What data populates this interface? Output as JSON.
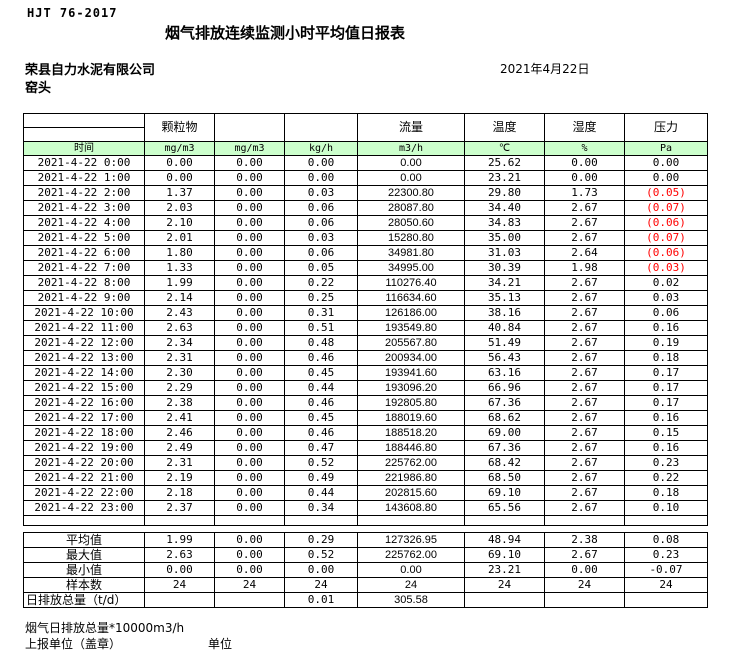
{
  "header": {
    "doc_code": "HJT 76-2017",
    "title": "烟气排放连续监测小时平均值日报表",
    "company": "荣县自力水泥有限公司",
    "station": "窑头",
    "date": "2021年4月22日"
  },
  "table": {
    "time_header": "时间",
    "group_headers": [
      "颗粒物",
      "",
      "",
      "流量",
      "温度",
      "湿度",
      "压力"
    ],
    "units": [
      "mg/m3",
      "mg/m3",
      "kg/h",
      "m3/h",
      "℃",
      "%",
      "Pa"
    ],
    "hourly_rows": [
      {
        "time": "2021-4-22 0:00",
        "values": [
          "0.00",
          "0.00",
          "0.00",
          "0.00",
          "25.62",
          "0.00",
          "0.00"
        ]
      },
      {
        "time": "2021-4-22 1:00",
        "values": [
          "0.00",
          "0.00",
          "0.00",
          "0.00",
          "23.21",
          "0.00",
          "0.00"
        ]
      },
      {
        "time": "2021-4-22 2:00",
        "values": [
          "1.37",
          "0.00",
          "0.03",
          "22300.80",
          "29.80",
          "1.73",
          "(0.05)"
        ]
      },
      {
        "time": "2021-4-22 3:00",
        "values": [
          "2.03",
          "0.00",
          "0.06",
          "28087.80",
          "34.40",
          "2.67",
          "(0.07)"
        ]
      },
      {
        "time": "2021-4-22 4:00",
        "values": [
          "2.10",
          "0.00",
          "0.06",
          "28050.60",
          "34.83",
          "2.67",
          "(0.06)"
        ]
      },
      {
        "time": "2021-4-22 5:00",
        "values": [
          "2.01",
          "0.00",
          "0.03",
          "15280.80",
          "35.00",
          "2.67",
          "(0.07)"
        ]
      },
      {
        "time": "2021-4-22 6:00",
        "values": [
          "1.80",
          "0.00",
          "0.06",
          "34981.80",
          "31.03",
          "2.64",
          "(0.06)"
        ]
      },
      {
        "time": "2021-4-22 7:00",
        "values": [
          "1.33",
          "0.00",
          "0.05",
          "34995.00",
          "30.39",
          "1.98",
          "(0.03)"
        ]
      },
      {
        "time": "2021-4-22 8:00",
        "values": [
          "1.99",
          "0.00",
          "0.22",
          "110276.40",
          "34.21",
          "2.67",
          "0.02"
        ]
      },
      {
        "time": "2021-4-22 9:00",
        "values": [
          "2.14",
          "0.00",
          "0.25",
          "116634.60",
          "35.13",
          "2.67",
          "0.03"
        ]
      },
      {
        "time": "2021-4-22 10:00",
        "values": [
          "2.43",
          "0.00",
          "0.31",
          "126186.00",
          "38.16",
          "2.67",
          "0.06"
        ]
      },
      {
        "time": "2021-4-22 11:00",
        "values": [
          "2.63",
          "0.00",
          "0.51",
          "193549.80",
          "40.84",
          "2.67",
          "0.16"
        ]
      },
      {
        "time": "2021-4-22 12:00",
        "values": [
          "2.34",
          "0.00",
          "0.48",
          "205567.80",
          "51.49",
          "2.67",
          "0.19"
        ]
      },
      {
        "time": "2021-4-22 13:00",
        "values": [
          "2.31",
          "0.00",
          "0.46",
          "200934.00",
          "56.43",
          "2.67",
          "0.18"
        ]
      },
      {
        "time": "2021-4-22 14:00",
        "values": [
          "2.30",
          "0.00",
          "0.45",
          "193941.60",
          "63.16",
          "2.67",
          "0.17"
        ]
      },
      {
        "time": "2021-4-22 15:00",
        "values": [
          "2.29",
          "0.00",
          "0.44",
          "193096.20",
          "66.96",
          "2.67",
          "0.17"
        ]
      },
      {
        "time": "2021-4-22 16:00",
        "values": [
          "2.38",
          "0.00",
          "0.46",
          "192805.80",
          "67.36",
          "2.67",
          "0.17"
        ]
      },
      {
        "time": "2021-4-22 17:00",
        "values": [
          "2.41",
          "0.00",
          "0.45",
          "188019.60",
          "68.62",
          "2.67",
          "0.16"
        ]
      },
      {
        "time": "2021-4-22 18:00",
        "values": [
          "2.46",
          "0.00",
          "0.46",
          "188518.20",
          "69.00",
          "2.67",
          "0.15"
        ]
      },
      {
        "time": "2021-4-22 19:00",
        "values": [
          "2.49",
          "0.00",
          "0.47",
          "188446.80",
          "67.36",
          "2.67",
          "0.16"
        ]
      },
      {
        "time": "2021-4-22 20:00",
        "values": [
          "2.31",
          "0.00",
          "0.52",
          "225762.00",
          "68.42",
          "2.67",
          "0.23"
        ]
      },
      {
        "time": "2021-4-22 21:00",
        "values": [
          "2.19",
          "0.00",
          "0.49",
          "221986.80",
          "68.50",
          "2.67",
          "0.22"
        ]
      },
      {
        "time": "2021-4-22 22:00",
        "values": [
          "2.18",
          "0.00",
          "0.44",
          "202815.60",
          "69.10",
          "2.67",
          "0.18"
        ]
      },
      {
        "time": "2021-4-22 23:00",
        "values": [
          "2.37",
          "0.00",
          "0.34",
          "143608.80",
          "65.56",
          "2.67",
          "0.10"
        ]
      }
    ],
    "summary_rows": [
      {
        "label": "平均值",
        "values": [
          "1.99",
          "0.00",
          "0.29",
          "127326.95",
          "48.94",
          "2.38",
          "0.08"
        ]
      },
      {
        "label": "最大值",
        "values": [
          "2.63",
          "0.00",
          "0.52",
          "225762.00",
          "69.10",
          "2.67",
          "0.23"
        ]
      },
      {
        "label": "最小值",
        "values": [
          "0.00",
          "0.00",
          "0.00",
          "0.00",
          "23.21",
          "0.00",
          "-0.07"
        ]
      },
      {
        "label": "样本数",
        "values": [
          "24",
          "24",
          "24",
          "24",
          "24",
          "24",
          "24"
        ]
      },
      {
        "label": "日排放总量（t/d）",
        "values": [
          "",
          "",
          "0.01",
          "305.58",
          "",
          "",
          ""
        ]
      }
    ]
  },
  "footer": {
    "note": "烟气日排放总量*10000m3/h",
    "report_unit_label": "上报单位（盖章）",
    "unit_label": "单位"
  },
  "colors": {
    "header_green": "#ccffcc",
    "negative_red": "#ff0000"
  }
}
